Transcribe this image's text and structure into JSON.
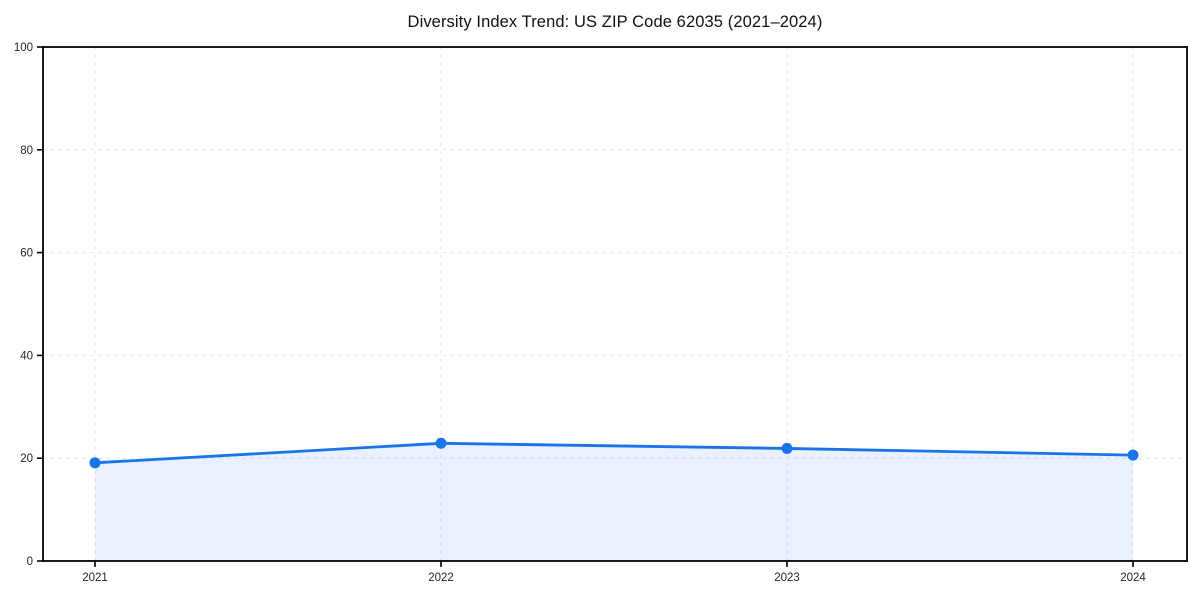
{
  "chart_data": {
    "type": "line",
    "title": "Diversity Index Trend: US ZIP Code 62035 (2021–2024)",
    "x": [
      2021,
      2022,
      2023,
      2024
    ],
    "categories": [
      "2021",
      "2022",
      "2023",
      "2024"
    ],
    "series": [
      {
        "name": "Diversity Index",
        "values": [
          19.1,
          22.9,
          21.9,
          20.6
        ]
      }
    ],
    "xlabel": "",
    "ylabel": "",
    "ylim": [
      0,
      100
    ],
    "yticks": [
      0,
      20,
      40,
      60,
      80,
      100
    ],
    "grid": "dashed, horizontal and vertical at ticks",
    "legend": "none",
    "marker": "circle",
    "area_fill": true,
    "colors": {
      "line": "#1a73e8",
      "marker": "#1a73e8",
      "area_fill": "rgba(26,115,232,0.10)",
      "gridline": "#e4e4e4",
      "axis_spine": "#000000",
      "tick_label": "#262626",
      "title": "#111111",
      "background": "#ffffff"
    }
  }
}
